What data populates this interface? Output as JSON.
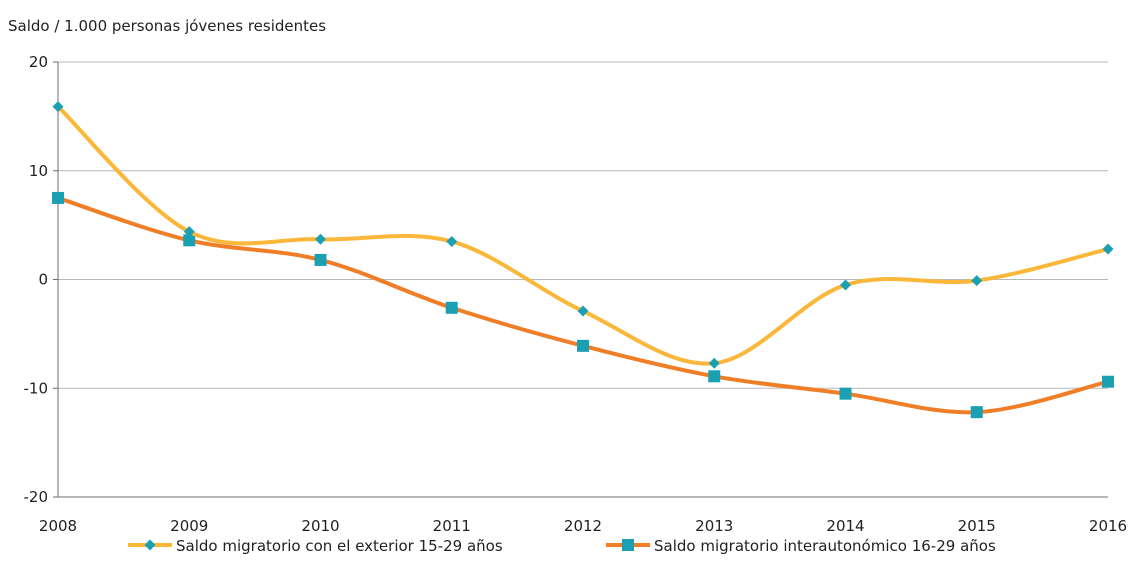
{
  "chart_data": {
    "type": "line",
    "title": "",
    "ylabel": "Saldo / 1.000 personas jóvenes residentes",
    "xlabel": "",
    "x": [
      "2008",
      "2009",
      "2010",
      "2011",
      "2012",
      "2013",
      "2014",
      "2015",
      "2016"
    ],
    "ylim": [
      -20,
      20
    ],
    "yticks": [
      "20",
      "10",
      "0",
      "-10",
      "-20"
    ],
    "ytick_values": [
      20,
      10,
      0,
      -10,
      -20
    ],
    "grid": "horizontal",
    "legend_position": "bottom",
    "series": [
      {
        "name": "Saldo migratorio con el exterior 15-29 años",
        "values": [
          15.9,
          4.4,
          3.7,
          3.5,
          -2.9,
          -7.7,
          -0.5,
          -0.1,
          2.8
        ],
        "line_color": "#fbb73a",
        "marker": "diamond",
        "marker_color": "#1aa0b2"
      },
      {
        "name": "Saldo migratorio interautonómico 16-29 años",
        "values": [
          7.5,
          3.6,
          1.8,
          -2.6,
          -6.1,
          -8.9,
          -10.5,
          -12.2,
          -9.4
        ],
        "line_color": "#f07e27",
        "marker": "square",
        "marker_color": "#1aa0b2"
      }
    ]
  }
}
